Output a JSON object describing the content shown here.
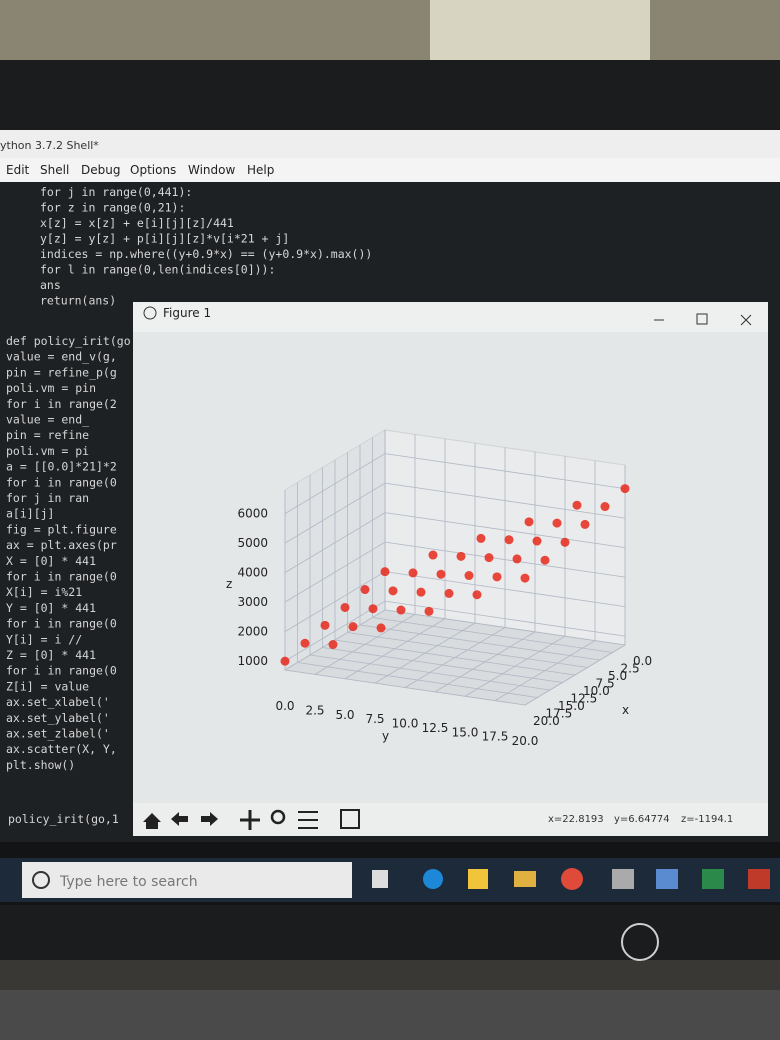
{
  "shell": {
    "title": "ython 3.7.2 Shell*",
    "menu": [
      "Edit",
      "Shell",
      "Debug",
      "Options",
      "Window",
      "Help"
    ],
    "code_top": [
      "    for j in range(0,441):",
      "        for z in range(0,21):",
      "            x[z] = x[z] + e[i][j][z]/441",
      "            y[z] = y[z] + p[i][j][z]*v[i*21 + j]",
      "        indices = np.where((y+0.9*x) == (y+0.9*x).max())",
      "        for l in range(0,len(indices[0])):",
      "            ans",
      "    return(ans)"
    ],
    "code": [
      "def policy_irit(go,",
      "value = end_v(g,",
      "pin = refine_p(g",
      "poli.vm = pin",
      "for i in range(2",
      "    value = end_",
      "    pin = refine",
      "    poli.vm = pi",
      "a = [[0.0]*21]*2",
      "for i in range(0",
      "    for j in ran",
      "        a[i][j]",
      "fig = plt.figure",
      "ax = plt.axes(pr",
      "X = [0] * 441",
      "for i in range(0",
      "    X[i] = i%21",
      "Y = [0] * 441",
      "for i in range(0",
      "    Y[i] = i //",
      "Z = [0] * 441",
      "for i in range(0",
      "    Z[i] = value",
      "ax.set_xlabel('",
      "ax.set_ylabel('",
      "ax.set_zlabel('",
      "ax.scatter(X, Y,",
      "plt.show()"
    ],
    "prompt": "policy_irit(go,1"
  },
  "figure": {
    "title": "Figure 1",
    "status": [
      "x=22.8193",
      "y=6.64774",
      "z=-1194.1"
    ]
  },
  "taskbar": {
    "search": "Type here to search"
  },
  "chart_data": {
    "type": "scatter3d",
    "xlabel": "x",
    "ylabel": "y",
    "zlabel": "z",
    "color": "#e8281c",
    "x": [
      0,
      4,
      8,
      12,
      16,
      20
    ],
    "y": [
      0,
      4,
      8,
      12,
      16,
      20
    ],
    "z": [
      [
        2000,
        2800,
        3600,
        4400,
        5200,
        6000
      ],
      [
        1800,
        2600,
        3400,
        4200,
        5000,
        5800
      ],
      [
        1600,
        2400,
        3200,
        4000,
        4800,
        5600
      ],
      [
        1400,
        2200,
        3000,
        3800,
        4600,
        5400
      ],
      [
        1200,
        2000,
        2800,
        3600,
        4400,
        5200
      ],
      [
        1000,
        1800,
        2600,
        3400,
        4200,
        5000
      ]
    ],
    "xlim": [
      0,
      20
    ],
    "ylim": [
      0,
      20
    ],
    "zlim": [
      700,
      6800
    ],
    "xticks": [
      {
        "value": 0,
        "label": "0.0"
      },
      {
        "value": 2.5,
        "label": "2.5"
      },
      {
        "value": 5,
        "label": "5.0"
      },
      {
        "value": 7.5,
        "label": "7.5"
      },
      {
        "value": 10,
        "label": "10.0"
      },
      {
        "value": 12.5,
        "label": "12.5"
      },
      {
        "value": 15,
        "label": "15.0"
      },
      {
        "value": 17.5,
        "label": "17.5"
      },
      {
        "value": 20,
        "label": "20.0"
      }
    ],
    "yticks": [
      {
        "value": 0,
        "label": "0.0"
      },
      {
        "value": 2.5,
        "label": "2.5"
      },
      {
        "value": 5,
        "label": "5.0"
      },
      {
        "value": 7.5,
        "label": "7.5"
      },
      {
        "value": 10,
        "label": "10.0"
      },
      {
        "value": 12.5,
        "label": "12.5"
      },
      {
        "value": 15,
        "label": "15.0"
      },
      {
        "value": 17.5,
        "label": "17.5"
      },
      {
        "value": 20,
        "label": "20.0"
      }
    ],
    "zticks": [
      1000,
      2000,
      3000,
      4000,
      5000,
      6000
    ]
  }
}
